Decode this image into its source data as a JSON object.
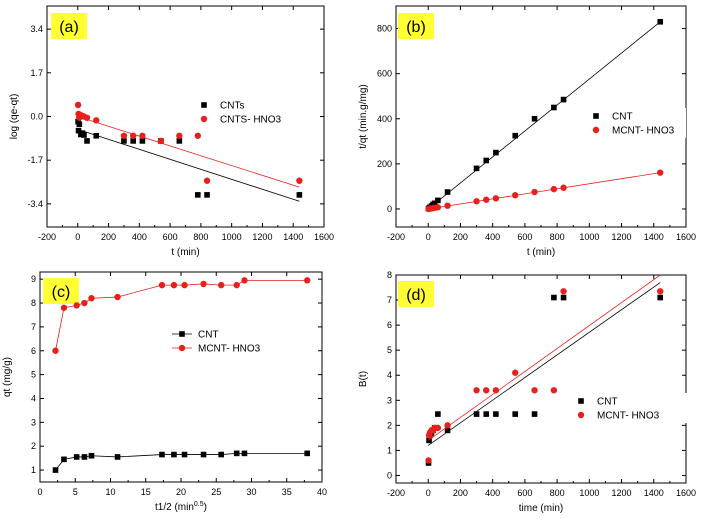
{
  "chart_data": [
    {
      "type": "scatter",
      "panel_label": "(a)",
      "xlabel": "t (min)",
      "ylabel": "log (qe-qt)",
      "xlim": [
        -200,
        1600
      ],
      "ylim": [
        -4.3,
        4.3
      ],
      "x_ticks": [
        "-200",
        "0",
        "200",
        "400",
        "600",
        "800",
        "1000",
        "1200",
        "1400",
        "1600"
      ],
      "y_ticks": [
        "3.4",
        "1.7",
        "0.0",
        "-1.7",
        "-3.4"
      ],
      "legend_position": "center-right",
      "series": [
        {
          "name": "CNTs",
          "color": "#000000",
          "marker": "square",
          "x": [
            2,
            5,
            10,
            20,
            30,
            40,
            60,
            120,
            300,
            360,
            420,
            540,
            660,
            780,
            840,
            1440
          ],
          "y": [
            -0.2,
            -0.55,
            -0.3,
            -0.7,
            -0.65,
            -0.72,
            -0.95,
            -0.75,
            -0.95,
            -0.95,
            -0.95,
            -0.95,
            -0.95,
            -3.05,
            -3.05,
            -3.05
          ],
          "fit": {
            "x": [
              0,
              1440
            ],
            "y": [
              -0.5,
              -3.3
            ]
          }
        },
        {
          "name": "CNTS- HNO3",
          "color": "#e8201b",
          "marker": "circle",
          "x": [
            2,
            5,
            10,
            20,
            30,
            40,
            60,
            120,
            300,
            360,
            420,
            540,
            660,
            780,
            840,
            1440
          ],
          "y": [
            0.45,
            0.1,
            -0.05,
            0.05,
            0.02,
            0.0,
            -0.05,
            -0.15,
            -0.75,
            -0.75,
            -0.75,
            -0.95,
            -0.75,
            -0.75,
            -2.5,
            -2.5
          ],
          "fit": {
            "x": [
              0,
              1440
            ],
            "y": [
              0.0,
              -2.75
            ]
          }
        }
      ]
    },
    {
      "type": "scatter",
      "panel_label": "(b)",
      "xlabel": "t (min)",
      "ylabel": "t/qt (min.g/mg)",
      "xlim": [
        -200,
        1600
      ],
      "ylim": [
        -80,
        900
      ],
      "x_ticks": [
        "-200",
        "0",
        "200",
        "400",
        "600",
        "800",
        "1000",
        "1200",
        "1400",
        "1600"
      ],
      "y_ticks": [
        "0",
        "200",
        "400",
        "600",
        "800"
      ],
      "legend_position": "center-right",
      "series": [
        {
          "name": "CNT",
          "color": "#000000",
          "marker": "square",
          "x": [
            2,
            5,
            10,
            20,
            30,
            40,
            60,
            120,
            300,
            360,
            420,
            540,
            660,
            780,
            840,
            1440
          ],
          "y": [
            2,
            3,
            7,
            13,
            20,
            25,
            38,
            75,
            180,
            215,
            250,
            325,
            400,
            450,
            485,
            830
          ],
          "fit": {
            "x": [
              0,
              1440
            ],
            "y": [
              0,
              830
            ]
          }
        },
        {
          "name": "MCNT- HNO3",
          "color": "#e8201b",
          "marker": "circle",
          "x": [
            2,
            5,
            10,
            20,
            30,
            40,
            60,
            120,
            300,
            360,
            420,
            540,
            660,
            780,
            840,
            1440
          ],
          "y": [
            0.3,
            0.6,
            1.3,
            2.5,
            3.8,
            5,
            7.4,
            14.5,
            34,
            41,
            47,
            61,
            75,
            88,
            94,
            161
          ],
          "fit": {
            "x": [
              0,
              1440
            ],
            "y": [
              0,
              161
            ]
          }
        }
      ]
    },
    {
      "type": "line",
      "panel_label": "(c)",
      "xlabel": "t1/2 (min",
      "xlabel_superscript": "0.5",
      "xlabel_suffix": ")",
      "ylabel": "qt (mg/g)",
      "xlim": [
        0,
        40
      ],
      "ylim": [
        0.5,
        9.3
      ],
      "x_ticks": [
        "0",
        "5",
        "10",
        "15",
        "20",
        "25",
        "30",
        "35",
        "40"
      ],
      "y_ticks": [
        "1",
        "2",
        "3",
        "4",
        "5",
        "6",
        "7",
        "8",
        "9"
      ],
      "legend_position": "center-right",
      "series": [
        {
          "name": "CNT",
          "color": "#000000",
          "marker": "square",
          "x": [
            2.2,
            3.4,
            5.2,
            6.3,
            7.3,
            11.0,
            17.3,
            19.0,
            20.5,
            23.2,
            25.7,
            27.9,
            29.0,
            37.9
          ],
          "y": [
            1.0,
            1.45,
            1.55,
            1.55,
            1.6,
            1.55,
            1.65,
            1.65,
            1.65,
            1.65,
            1.65,
            1.7,
            1.7,
            1.7
          ]
        },
        {
          "name": "MCNT- HNO3",
          "color": "#e8201b",
          "marker": "circle",
          "x": [
            2.2,
            3.4,
            5.2,
            6.3,
            7.3,
            11.0,
            17.3,
            19.0,
            20.5,
            23.2,
            25.7,
            27.9,
            29.0,
            37.9
          ],
          "y": [
            6.0,
            7.8,
            7.9,
            8.0,
            8.2,
            8.25,
            8.75,
            8.75,
            8.75,
            8.8,
            8.75,
            8.75,
            8.95,
            8.95
          ]
        }
      ]
    },
    {
      "type": "scatter",
      "panel_label": "(d)",
      "xlabel": "time (min)",
      "ylabel": "B(t)",
      "xlim": [
        -200,
        1600
      ],
      "ylim": [
        -0.3,
        8
      ],
      "x_ticks": [
        "-200",
        "0",
        "200",
        "400",
        "600",
        "800",
        "1000",
        "1200",
        "1400",
        "1600"
      ],
      "y_ticks": [
        "0",
        "1",
        "2",
        "3",
        "4",
        "5",
        "6",
        "7",
        "8"
      ],
      "legend_position": "center-right",
      "series": [
        {
          "name": "CNT",
          "color": "#000000",
          "marker": "square",
          "x": [
            2,
            5,
            10,
            20,
            30,
            40,
            60,
            120,
            300,
            360,
            420,
            540,
            660,
            780,
            840,
            1440
          ],
          "y": [
            0.5,
            1.4,
            1.6,
            1.7,
            1.8,
            1.9,
            2.45,
            1.8,
            2.45,
            2.45,
            2.45,
            2.45,
            2.45,
            7.1,
            7.1,
            7.1
          ],
          "fit": {
            "x": [
              0,
              1440
            ],
            "y": [
              1.2,
              7.7
            ]
          }
        },
        {
          "name": "MCNT- HNO3",
          "color": "#e8201b",
          "marker": "circle",
          "x": [
            2,
            5,
            10,
            20,
            30,
            40,
            60,
            120,
            300,
            360,
            420,
            540,
            660,
            780,
            840,
            1440
          ],
          "y": [
            0.6,
            1.6,
            1.7,
            1.8,
            1.8,
            1.9,
            1.9,
            2.0,
            3.4,
            3.4,
            3.4,
            4.1,
            3.4,
            3.4,
            7.35,
            7.35
          ],
          "fit": {
            "x": [
              0,
              1440
            ],
            "y": [
              1.4,
              8.0
            ]
          }
        }
      ]
    }
  ]
}
